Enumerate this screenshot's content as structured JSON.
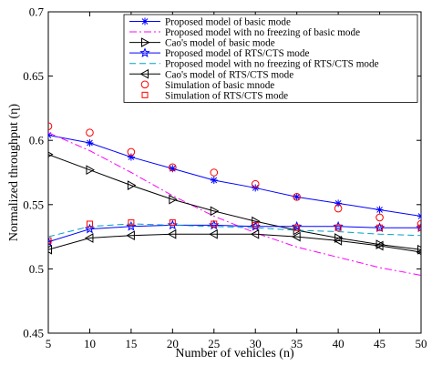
{
  "chart_data": {
    "type": "line",
    "title": "",
    "xlabel": "Number of vehicles (n)",
    "ylabel": "Normalized throughput (η)",
    "xlim": [
      5,
      50
    ],
    "ylim": [
      0.45,
      0.7
    ],
    "xticks": [
      5,
      10,
      15,
      20,
      25,
      30,
      35,
      40,
      45,
      50
    ],
    "yticks": [
      0.45,
      0.5,
      0.55,
      0.6,
      0.65,
      0.7
    ],
    "xtick_labels": [
      "5",
      "10",
      "15",
      "20",
      "25",
      "30",
      "35",
      "40",
      "45",
      "50"
    ],
    "ytick_labels": [
      "0.45",
      "0.5",
      "0.55",
      "0.6",
      "0.65",
      "0.7"
    ],
    "grid": false,
    "legend_position": "top-right",
    "series": [
      {
        "name": "Proposed model of basic mode",
        "color": "#0000ff",
        "line": "solid",
        "marker": "asterisk",
        "x": [
          5,
          10,
          15,
          20,
          25,
          30,
          35,
          40,
          45,
          50
        ],
        "y": [
          0.604,
          0.598,
          0.587,
          0.578,
          0.569,
          0.563,
          0.556,
          0.551,
          0.546,
          0.541
        ]
      },
      {
        "name": "Proposed model with no freezing of basic mode",
        "color": "#ff00ff",
        "line": "dashdot",
        "marker": "none",
        "x": [
          5,
          10,
          15,
          20,
          25,
          30,
          35,
          40,
          45,
          50
        ],
        "y": [
          0.606,
          0.592,
          0.575,
          0.557,
          0.541,
          0.528,
          0.517,
          0.509,
          0.501,
          0.495
        ]
      },
      {
        "name": "Cao's model of basic mode",
        "color": "#000000",
        "line": "solid",
        "marker": "triangle-right",
        "x": [
          5,
          10,
          15,
          20,
          25,
          30,
          35,
          40,
          45,
          50
        ],
        "y": [
          0.589,
          0.577,
          0.565,
          0.554,
          0.545,
          0.537,
          0.53,
          0.524,
          0.519,
          0.515
        ]
      },
      {
        "name": "Proposed model of RTS/CTS mode",
        "color": "#0000ff",
        "line": "solid",
        "marker": "star",
        "x": [
          5,
          10,
          15,
          20,
          25,
          30,
          35,
          40,
          45,
          50
        ],
        "y": [
          0.521,
          0.531,
          0.533,
          0.534,
          0.534,
          0.533,
          0.533,
          0.533,
          0.532,
          0.532
        ]
      },
      {
        "name": "Proposed model with no freezing of RTS/CTS mode",
        "color": "#00a0c8",
        "line": "dashed",
        "marker": "none",
        "x": [
          5,
          10,
          15,
          20,
          25,
          30,
          35,
          40,
          45,
          50
        ],
        "y": [
          0.525,
          0.533,
          0.535,
          0.534,
          0.533,
          0.532,
          0.53,
          0.529,
          0.527,
          0.526
        ]
      },
      {
        "name": "Cao's model of RTS/CTS mode",
        "color": "#000000",
        "line": "solid",
        "marker": "triangle-left",
        "x": [
          5,
          10,
          15,
          20,
          25,
          30,
          35,
          40,
          45,
          50
        ],
        "y": [
          0.515,
          0.524,
          0.526,
          0.527,
          0.527,
          0.527,
          0.525,
          0.522,
          0.518,
          0.513
        ]
      },
      {
        "name": "Simulation of basic mnode",
        "color": "#ff0000",
        "line": "none",
        "marker": "circle",
        "x": [
          5,
          10,
          15,
          20,
          25,
          30,
          35,
          40,
          45,
          50
        ],
        "y": [
          0.611,
          0.606,
          0.591,
          0.579,
          0.575,
          0.566,
          0.556,
          0.547,
          0.54,
          0.535
        ]
      },
      {
        "name": "Simulation of RTS/CTS mode",
        "color": "#ff0000",
        "line": "none",
        "marker": "square",
        "x": [
          5,
          10,
          15,
          20,
          25,
          30,
          35,
          40,
          45,
          50
        ],
        "y": [
          0.522,
          0.535,
          0.536,
          0.536,
          0.535,
          0.534,
          0.532,
          0.532,
          0.532,
          0.532
        ]
      }
    ]
  }
}
